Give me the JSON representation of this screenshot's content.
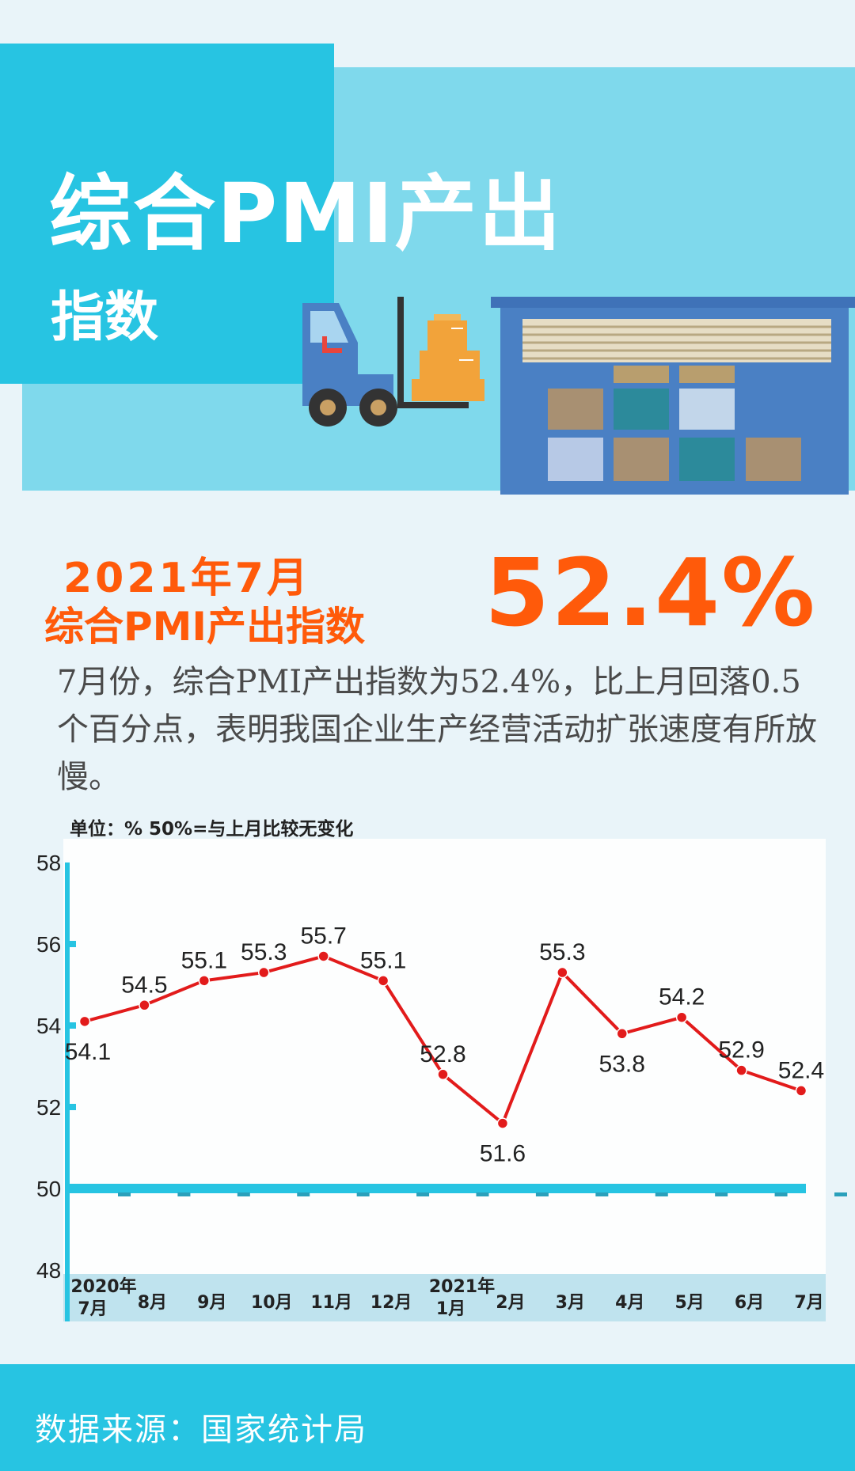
{
  "header": {
    "title": "综合PMI产出",
    "subtitle": "指数"
  },
  "headline": {
    "date": "2021年7月",
    "label": "综合PMI产出指数",
    "value": "52.4%"
  },
  "description": "7月份，综合PMI产出指数为52.4%，比上月回落0.5个百分点，表明我国企业生产经营活动扩张速度有所放慢。",
  "footer": {
    "source": "数据来源：国家统计局"
  },
  "colors": {
    "accent": "#ff5a0a",
    "line": "#e21b1b",
    "banner": "#27c4e2",
    "banner_light": "#7fd9ec"
  },
  "chart_data": {
    "type": "line",
    "unit_note": "单位：%  50%=与上月比较无变化",
    "categories": [
      [
        "2020年",
        "7月"
      ],
      [
        "8月"
      ],
      [
        "9月"
      ],
      [
        "10月"
      ],
      [
        "11月"
      ],
      [
        "12月"
      ],
      [
        "2021年",
        "1月"
      ],
      [
        "2月"
      ],
      [
        "3月"
      ],
      [
        "4月"
      ],
      [
        "5月"
      ],
      [
        "6月"
      ],
      [
        "7月"
      ]
    ],
    "values": [
      54.1,
      54.5,
      55.1,
      55.3,
      55.7,
      55.1,
      52.8,
      51.6,
      55.3,
      53.8,
      54.2,
      52.9,
      52.4
    ],
    "value_labels": [
      "54.1",
      "54.5",
      "55.1",
      "55.3",
      "55.7",
      "55.1",
      "52.8",
      "51.6",
      "55.3",
      "53.8",
      "54.2",
      "52.9",
      "52.4"
    ],
    "y_ticks": [
      "48",
      "50",
      "52",
      "54",
      "56",
      "58"
    ],
    "ylim": [
      48,
      58
    ],
    "reference_line": 50,
    "grid": false
  }
}
